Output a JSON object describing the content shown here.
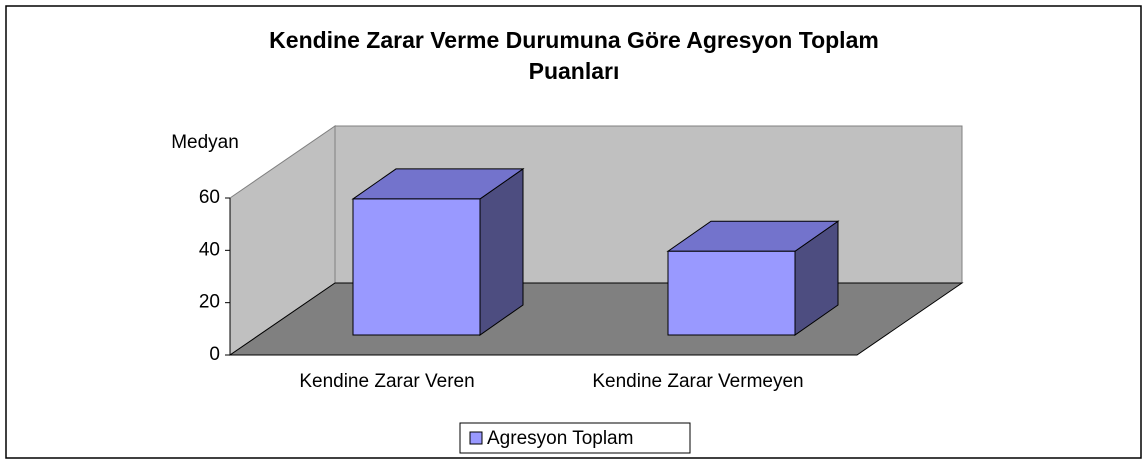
{
  "chart_data": {
    "type": "bar3d",
    "title": "Kendine Zarar Verme Durumuna Göre Agresyon Toplam Puanları",
    "y_label": "Medyan",
    "categories": [
      "Kendine Zarar Veren",
      "Kendine Zarar Vermeyen"
    ],
    "series": [
      {
        "name": "Agresyon Toplam",
        "color": "#9999ff",
        "values": [
          52,
          32
        ]
      }
    ],
    "ylim": [
      0,
      60
    ],
    "yticks": [
      0,
      20,
      40,
      60
    ],
    "grid": false,
    "legend": "bottom"
  }
}
